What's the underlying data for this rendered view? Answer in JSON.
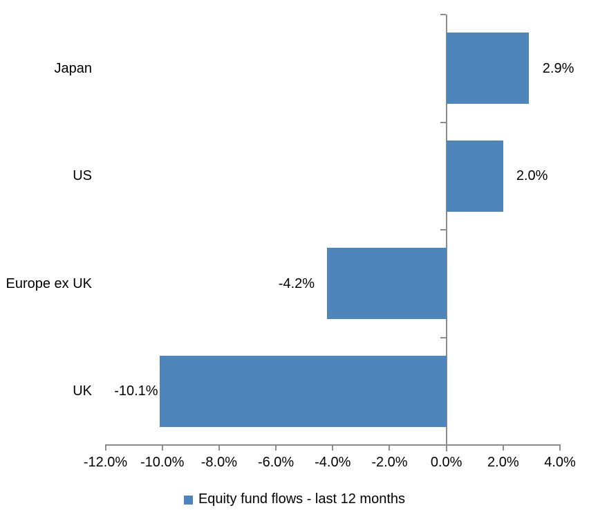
{
  "chart_data": {
    "type": "bar",
    "orientation": "horizontal",
    "title": "",
    "categories": [
      "Japan",
      "US",
      "Europe ex UK",
      "UK"
    ],
    "series": [
      {
        "name": "Equity fund flows - last 12 months",
        "values": [
          2.9,
          2.0,
          -4.2,
          -10.1
        ],
        "data_labels": [
          "2.9%",
          "2.0%",
          "-4.2%",
          "-10.1%"
        ]
      }
    ],
    "xlabel": "",
    "ylabel": "",
    "xlim": [
      -12,
      4
    ],
    "xticks": [
      -12,
      -10,
      -8,
      -6,
      -4,
      -2,
      0,
      2,
      4
    ],
    "xtick_labels": [
      "-12.0%",
      "-10.0%",
      "-8.0%",
      "-6.0%",
      "-4.0%",
      "-2.0%",
      "0.0%",
      "2.0%",
      "4.0%"
    ],
    "grid": false,
    "legend_position": "bottom",
    "legend_entries": [
      "Equity fund flows - last 12 months"
    ],
    "colors": {
      "bar": "#4E86BC",
      "axis": "#8C8C8C",
      "text": "#000000",
      "background": "#FFFFFF"
    }
  }
}
